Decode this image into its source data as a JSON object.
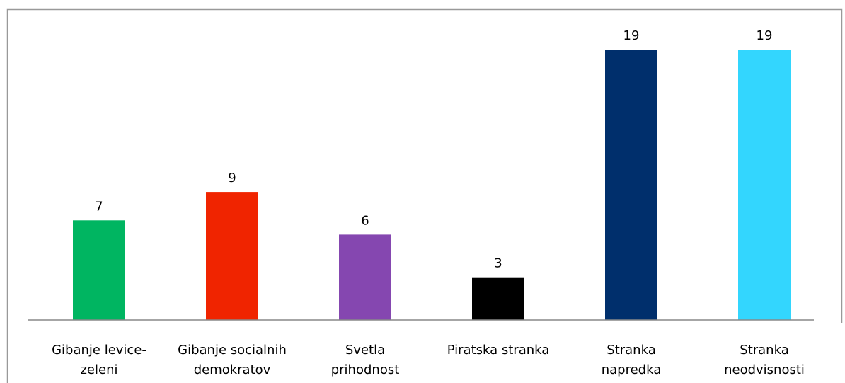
{
  "chart_data": {
    "type": "bar",
    "categories": [
      "Gibanje levice-\nzeleni",
      "Gibanje socialnih\ndemokratov",
      "Svetla\nprihodnost",
      "Piratska stranka",
      "Stranka\nnapredka",
      "Stranka\nneodvisnosti"
    ],
    "values": [
      7,
      9,
      6,
      3,
      19,
      19
    ],
    "colors": [
      "#00b561",
      "#f02400",
      "#8547b0",
      "#000000",
      "#002f6c",
      "#33d6fe"
    ],
    "ylim": [
      0,
      20
    ]
  }
}
